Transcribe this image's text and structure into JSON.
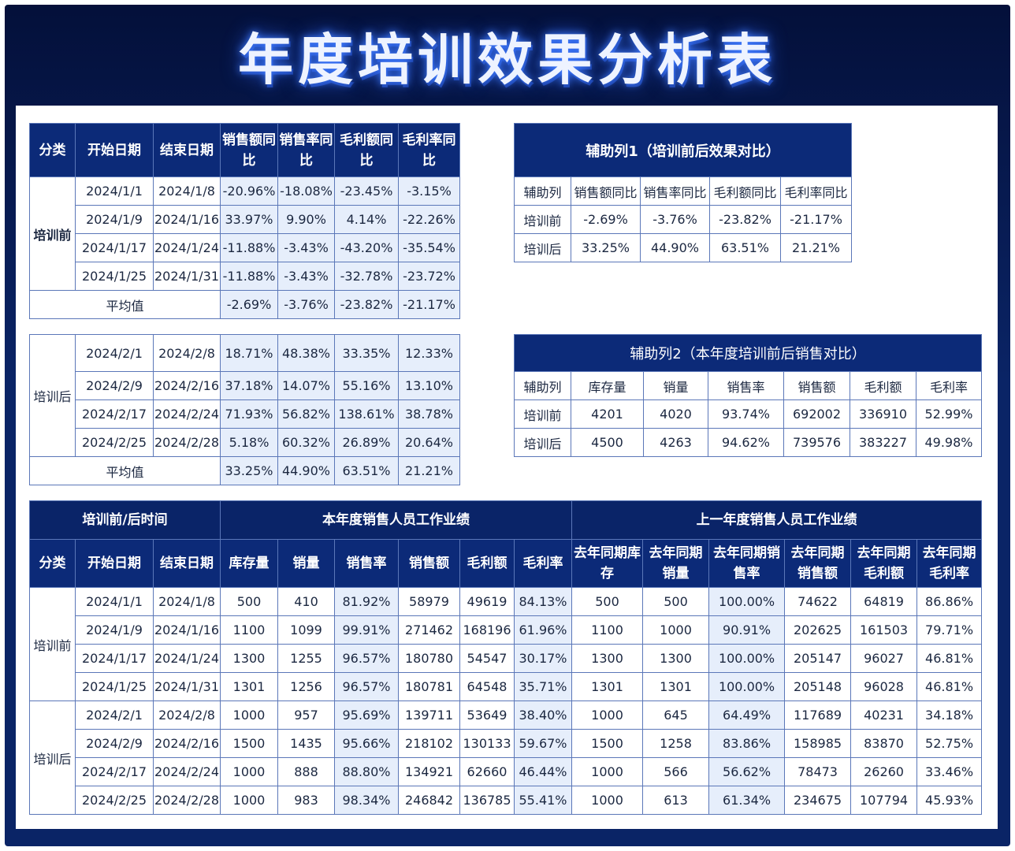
{
  "title": "年度培训效果分析表",
  "table1": {
    "headers": [
      "分类",
      "开始日期",
      "结束日期",
      "销售额同比",
      "销售率同比",
      "毛利额同比",
      "毛利率同比"
    ],
    "before_label": "培训前",
    "after_label": "培训后",
    "avg_label": "平均值",
    "before_rows": [
      [
        "2024/1/1",
        "2024/1/8",
        "-20.96%",
        "-18.08%",
        "-23.45%",
        "-3.15%"
      ],
      [
        "2024/1/9",
        "2024/1/16",
        "33.97%",
        "9.90%",
        "4.14%",
        "-22.26%"
      ],
      [
        "2024/1/17",
        "2024/1/24",
        "-11.88%",
        "-3.43%",
        "-43.20%",
        "-35.54%"
      ],
      [
        "2024/1/25",
        "2024/1/31",
        "-11.88%",
        "-3.43%",
        "-32.78%",
        "-23.72%"
      ]
    ],
    "before_avg": [
      "-2.69%",
      "-3.76%",
      "-23.82%",
      "-21.17%"
    ],
    "after_rows": [
      [
        "2024/2/1",
        "2024/2/8",
        "18.71%",
        "48.38%",
        "33.35%",
        "12.33%"
      ],
      [
        "2024/2/9",
        "2024/2/16",
        "37.18%",
        "14.07%",
        "55.16%",
        "13.10%"
      ],
      [
        "2024/2/17",
        "2024/2/24",
        "71.93%",
        "56.82%",
        "138.61%",
        "38.78%"
      ],
      [
        "2024/2/25",
        "2024/2/28",
        "5.18%",
        "60.32%",
        "26.89%",
        "20.64%"
      ]
    ],
    "after_avg": [
      "33.25%",
      "44.90%",
      "63.51%",
      "21.21%"
    ]
  },
  "aux1": {
    "title": "辅助列1（培训前后效果对比）",
    "headers": [
      "辅助列",
      "销售额同比",
      "销售率同比",
      "毛利额同比",
      "毛利率同比"
    ],
    "rows": [
      [
        "培训前",
        "-2.69%",
        "-3.76%",
        "-23.82%",
        "-21.17%"
      ],
      [
        "培训后",
        "33.25%",
        "44.90%",
        "63.51%",
        "21.21%"
      ]
    ]
  },
  "aux2": {
    "title": "辅助列2（本年度培训前后销售对比）",
    "headers": [
      "辅助列",
      "库存量",
      "销量",
      "销售率",
      "销售额",
      "毛利额",
      "毛利率"
    ],
    "rows": [
      [
        "培训前",
        "4201",
        "4020",
        "93.74%",
        "692002",
        "336910",
        "52.99%"
      ],
      [
        "培训后",
        "4500",
        "4263",
        "94.62%",
        "739576",
        "383227",
        "49.98%"
      ]
    ]
  },
  "main": {
    "band_time": "培训前/后时间",
    "band_this": "本年度销售人员工作业绩",
    "band_last": "上一年度销售人员工作业绩",
    "headers": [
      "分类",
      "开始日期",
      "结束日期",
      "库存量",
      "销量",
      "销售率",
      "销售额",
      "毛利额",
      "毛利率",
      "去年同期库存",
      "去年同期销量",
      "去年同期销售率",
      "去年同期销售额",
      "去年同期毛利额",
      "去年同期毛利率"
    ],
    "before_label": "培训前",
    "after_label": "培训后",
    "before_rows": [
      [
        "2024/1/1",
        "2024/1/8",
        "500",
        "410",
        "81.92%",
        "58979",
        "49619",
        "84.13%",
        "500",
        "500",
        "100.00%",
        "74622",
        "64819",
        "86.86%"
      ],
      [
        "2024/1/9",
        "2024/1/16",
        "1100",
        "1099",
        "99.91%",
        "271462",
        "168196",
        "61.96%",
        "1100",
        "1000",
        "90.91%",
        "202625",
        "161503",
        "79.71%"
      ],
      [
        "2024/1/17",
        "2024/1/24",
        "1300",
        "1255",
        "96.57%",
        "180780",
        "54547",
        "30.17%",
        "1300",
        "1300",
        "100.00%",
        "205147",
        "96027",
        "46.81%"
      ],
      [
        "2024/1/25",
        "2024/1/31",
        "1301",
        "1256",
        "96.57%",
        "180781",
        "64548",
        "35.71%",
        "1301",
        "1301",
        "100.00%",
        "205148",
        "96028",
        "46.81%"
      ]
    ],
    "after_rows": [
      [
        "2024/2/1",
        "2024/2/8",
        "1000",
        "957",
        "95.69%",
        "139711",
        "53649",
        "38.40%",
        "1000",
        "645",
        "64.49%",
        "117689",
        "40231",
        "34.18%"
      ],
      [
        "2024/2/9",
        "2024/2/16",
        "1500",
        "1435",
        "95.66%",
        "218102",
        "130133",
        "59.67%",
        "1500",
        "1258",
        "83.86%",
        "158985",
        "83870",
        "52.75%"
      ],
      [
        "2024/2/17",
        "2024/2/24",
        "1000",
        "888",
        "88.80%",
        "134921",
        "62660",
        "46.44%",
        "1000",
        "566",
        "56.62%",
        "78473",
        "26260",
        "33.46%"
      ],
      [
        "2024/2/25",
        "2024/2/28",
        "1000",
        "983",
        "98.34%",
        "246842",
        "136785",
        "55.41%",
        "1000",
        "613",
        "61.34%",
        "234675",
        "107794",
        "45.93%"
      ]
    ]
  }
}
